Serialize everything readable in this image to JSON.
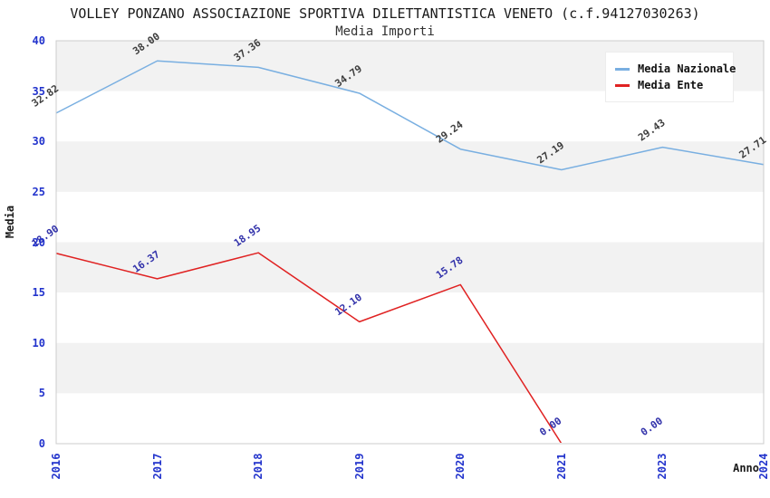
{
  "title": "VOLLEY PONZANO ASSOCIAZIONE SPORTIVA DILETTANTISTICA VENETO (c.f.94127030263)",
  "subtitle": "Media Importi",
  "legend": {
    "items": [
      {
        "label": "Media Nazionale",
        "color": "#79afe1"
      },
      {
        "label": "Media Ente",
        "color": "#e02222"
      }
    ]
  },
  "axes": {
    "y_title": "Media",
    "x_title": "Anno",
    "y_ticks": [
      "0",
      "5",
      "10",
      "15",
      "20",
      "25",
      "30",
      "35",
      "40"
    ],
    "tick_color": "#2233cc"
  },
  "colors": {
    "band_gray": "#f2f2f2",
    "band_white": "#ffffff",
    "plot_border": "#cccccc"
  },
  "chart_data": {
    "type": "line",
    "title": "VOLLEY PONZANO ASSOCIAZIONE SPORTIVA DILETTANTISTICA VENETO (c.f.94127030263)",
    "subtitle": "Media Importi",
    "xlabel": "Anno",
    "ylabel": "Media",
    "ylim": [
      0,
      40
    ],
    "y_tick_step": 5,
    "grid": "alternating-horizontal-bands",
    "legend_position": "top-right",
    "categories": [
      "2016",
      "2017",
      "2018",
      "2019",
      "2020",
      "2021",
      "2023",
      "2024"
    ],
    "series": [
      {
        "name": "Media Nazionale",
        "color": "#79afe1",
        "label_color": "#3d3d3d",
        "values": [
          32.82,
          38.0,
          37.36,
          34.79,
          29.24,
          27.19,
          29.43,
          27.71
        ],
        "labels": [
          "32.82",
          "38.00",
          "37.36",
          "34.79",
          "29.24",
          "27.19",
          "29.43",
          "27.71"
        ]
      },
      {
        "name": "Media Ente",
        "color": "#e02222",
        "label_color": "#3232aa",
        "values": [
          18.9,
          16.37,
          18.95,
          12.1,
          15.78,
          0.0,
          0.0,
          null
        ],
        "labels": [
          "18.90",
          "16.37",
          "18.95",
          "12.10",
          "15.78",
          "0.00",
          "0.00",
          null
        ]
      }
    ]
  }
}
